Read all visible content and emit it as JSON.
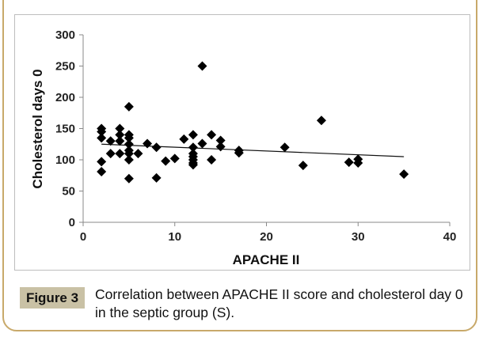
{
  "chart_data": {
    "type": "scatter",
    "xlabel": "APACHE II",
    "ylabel": "Cholesterol days 0",
    "xlim": [
      0,
      40
    ],
    "ylim": [
      0,
      300
    ],
    "xticks": [
      "0",
      "10",
      "20",
      "30",
      "40"
    ],
    "yticks": [
      "0",
      "50",
      "100",
      "150",
      "200",
      "250",
      "300"
    ],
    "grid": false,
    "marker": "diamond",
    "points": [
      [
        2,
        150
      ],
      [
        2,
        145
      ],
      [
        2,
        135
      ],
      [
        2,
        97
      ],
      [
        2,
        81
      ],
      [
        3,
        130
      ],
      [
        3,
        110
      ],
      [
        4,
        150
      ],
      [
        4,
        140
      ],
      [
        4,
        130
      ],
      [
        4,
        110
      ],
      [
        5,
        185
      ],
      [
        5,
        140
      ],
      [
        5,
        135
      ],
      [
        5,
        125
      ],
      [
        5,
        115
      ],
      [
        5,
        110
      ],
      [
        5,
        100
      ],
      [
        5,
        70
      ],
      [
        6,
        110
      ],
      [
        7,
        126
      ],
      [
        8,
        120
      ],
      [
        8,
        71
      ],
      [
        9,
        98
      ],
      [
        10,
        102
      ],
      [
        11,
        133
      ],
      [
        12,
        140
      ],
      [
        12,
        120
      ],
      [
        12,
        110
      ],
      [
        12,
        105
      ],
      [
        12,
        100
      ],
      [
        12,
        95
      ],
      [
        12,
        92
      ],
      [
        13,
        250
      ],
      [
        13,
        126
      ],
      [
        14,
        140
      ],
      [
        14,
        100
      ],
      [
        15,
        131
      ],
      [
        15,
        121
      ],
      [
        17,
        115
      ],
      [
        17,
        111
      ],
      [
        22,
        120
      ],
      [
        24,
        91
      ],
      [
        26,
        163
      ],
      [
        29,
        96
      ],
      [
        30,
        101
      ],
      [
        30,
        95
      ],
      [
        35,
        77
      ]
    ],
    "trendline": {
      "x": [
        2,
        35
      ],
      "y": [
        125,
        105
      ]
    }
  },
  "figure": {
    "label": "Figure 3",
    "caption": "Correlation between APACHE II score and cholesterol day 0 in the septic group (S)."
  },
  "colors": {
    "border": "#c8a96a",
    "badge": "#c9c1a5",
    "marker": "#000000"
  }
}
